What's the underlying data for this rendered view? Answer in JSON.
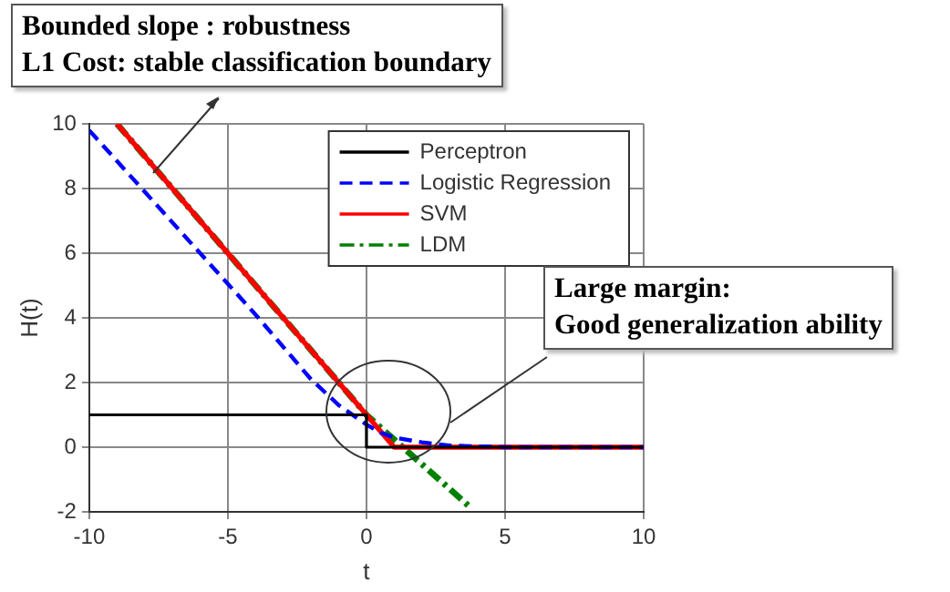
{
  "chart_data": {
    "type": "line",
    "xlabel": "t",
    "ylabel": "H(t)",
    "xlim": [
      -10,
      10
    ],
    "xticks": [
      -10,
      -5,
      0,
      5,
      10
    ],
    "ylim": [
      -2,
      10
    ],
    "yticks": [
      -2,
      0,
      2,
      4,
      6,
      8,
      10
    ],
    "grid": true,
    "legend": "top right",
    "marker": "none",
    "series": [
      {
        "name": "Perceptron",
        "color": "#000000",
        "line_style": "solid",
        "x": [
          -10,
          0,
          0,
          10
        ],
        "values": [
          1,
          1,
          0,
          0
        ]
      },
      {
        "name": "Logistic Regression",
        "color": "#0000ff",
        "line_style": "dashed",
        "x": [
          -10,
          -8,
          -6,
          -4,
          -2,
          -1,
          0,
          0.5,
          1,
          2,
          3,
          5,
          10
        ],
        "values": [
          9.8,
          7.9,
          6,
          4.1,
          2.1,
          1.3,
          0.7,
          0.45,
          0.3,
          0.15,
          0.05,
          0,
          0
        ]
      },
      {
        "name": "SVM",
        "color": "#ff0000",
        "line_style": "solid",
        "x": [
          -9,
          1,
          10
        ],
        "values": [
          10,
          0,
          0
        ]
      },
      {
        "name": "LDM",
        "color": "#008000",
        "line_style": "dashdot",
        "x": [
          -9,
          0,
          3.8
        ],
        "values": [
          10,
          1,
          -1.9
        ]
      }
    ],
    "annotations": [
      "Bounded slope : robustness\nL1 Cost: stable classification boundary",
      "Large margin:\nGood generalization ability"
    ]
  }
}
